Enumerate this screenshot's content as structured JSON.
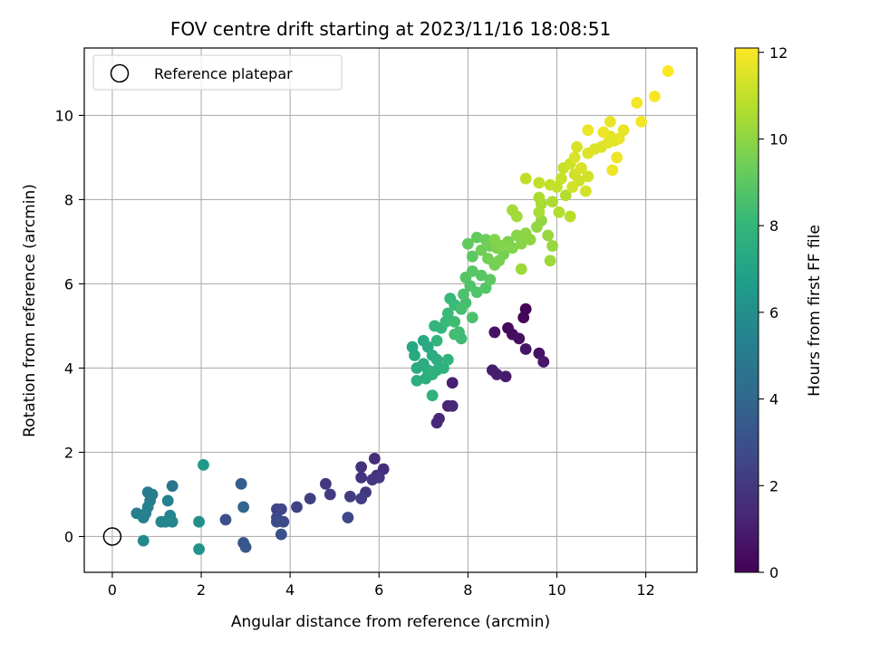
{
  "chart_data": {
    "type": "scatter",
    "title": "FOV centre drift starting at 2023/11/16 18:08:51",
    "xlabel": "Angular distance from reference (arcmin)",
    "ylabel": "Rotation from reference (arcmin)",
    "xlim": [
      -0.63,
      13.15
    ],
    "ylim": [
      -0.85,
      11.6
    ],
    "x_ticks": [
      0,
      2,
      4,
      6,
      8,
      10,
      12
    ],
    "y_ticks": [
      0,
      2,
      4,
      6,
      8,
      10
    ],
    "grid": true,
    "legend": {
      "position": "top-left",
      "entries": [
        "Reference platepar"
      ]
    },
    "reference_point": {
      "x": 0,
      "y": 0,
      "label": "Reference platepar"
    },
    "colorbar": {
      "label": "Hours from first FF file",
      "min": 0,
      "max": 12.1,
      "ticks": [
        0,
        2,
        4,
        6,
        8,
        10,
        12
      ],
      "colormap": "viridis"
    },
    "points": [
      {
        "x": 9.3,
        "y": 5.4,
        "c": 0.1
      },
      {
        "x": 9.25,
        "y": 5.2,
        "c": 0.2
      },
      {
        "x": 8.9,
        "y": 4.95,
        "c": 0.3
      },
      {
        "x": 9.0,
        "y": 4.8,
        "c": 0.4
      },
      {
        "x": 9.15,
        "y": 4.7,
        "c": 0.5
      },
      {
        "x": 8.6,
        "y": 4.85,
        "c": 0.6
      },
      {
        "x": 9.3,
        "y": 4.45,
        "c": 0.7
      },
      {
        "x": 9.6,
        "y": 4.35,
        "c": 0.6
      },
      {
        "x": 9.7,
        "y": 4.15,
        "c": 0.8
      },
      {
        "x": 8.85,
        "y": 3.8,
        "c": 0.9
      },
      {
        "x": 8.55,
        "y": 3.95,
        "c": 1.0
      },
      {
        "x": 8.65,
        "y": 3.85,
        "c": 1.0
      },
      {
        "x": 7.65,
        "y": 3.65,
        "c": 1.1
      },
      {
        "x": 7.55,
        "y": 3.1,
        "c": 1.2
      },
      {
        "x": 7.65,
        "y": 3.1,
        "c": 1.3
      },
      {
        "x": 7.35,
        "y": 2.8,
        "c": 1.3
      },
      {
        "x": 7.3,
        "y": 2.7,
        "c": 1.4
      },
      {
        "x": 5.9,
        "y": 1.85,
        "c": 1.5
      },
      {
        "x": 6.1,
        "y": 1.6,
        "c": 1.6
      },
      {
        "x": 5.6,
        "y": 1.65,
        "c": 1.7
      },
      {
        "x": 5.95,
        "y": 1.45,
        "c": 1.8
      },
      {
        "x": 5.6,
        "y": 1.4,
        "c": 1.8
      },
      {
        "x": 6.0,
        "y": 1.4,
        "c": 1.9
      },
      {
        "x": 5.85,
        "y": 1.35,
        "c": 1.9
      },
      {
        "x": 4.8,
        "y": 1.25,
        "c": 2.0
      },
      {
        "x": 5.7,
        "y": 1.05,
        "c": 2.0
      },
      {
        "x": 4.9,
        "y": 1.0,
        "c": 2.1
      },
      {
        "x": 5.35,
        "y": 0.95,
        "c": 2.2
      },
      {
        "x": 5.6,
        "y": 0.9,
        "c": 2.2
      },
      {
        "x": 4.45,
        "y": 0.9,
        "c": 2.3
      },
      {
        "x": 4.15,
        "y": 0.7,
        "c": 2.4
      },
      {
        "x": 3.7,
        "y": 0.65,
        "c": 2.5
      },
      {
        "x": 3.8,
        "y": 0.65,
        "c": 2.6
      },
      {
        "x": 5.3,
        "y": 0.45,
        "c": 2.6
      },
      {
        "x": 3.7,
        "y": 0.45,
        "c": 2.7
      },
      {
        "x": 3.7,
        "y": 0.35,
        "c": 2.8
      },
      {
        "x": 3.85,
        "y": 0.35,
        "c": 2.8
      },
      {
        "x": 2.55,
        "y": 0.4,
        "c": 3.0
      },
      {
        "x": 3.8,
        "y": 0.05,
        "c": 3.0
      },
      {
        "x": 2.95,
        "y": -0.15,
        "c": 3.2
      },
      {
        "x": 3.0,
        "y": -0.25,
        "c": 3.3
      },
      {
        "x": 2.9,
        "y": 1.25,
        "c": 3.6
      },
      {
        "x": 2.95,
        "y": 0.7,
        "c": 4.0
      },
      {
        "x": 1.35,
        "y": 1.2,
        "c": 4.6
      },
      {
        "x": 0.8,
        "y": 1.05,
        "c": 5.0
      },
      {
        "x": 0.9,
        "y": 1.0,
        "c": 5.0
      },
      {
        "x": 0.85,
        "y": 0.85,
        "c": 5.1
      },
      {
        "x": 0.8,
        "y": 0.7,
        "c": 5.2
      },
      {
        "x": 0.55,
        "y": 0.55,
        "c": 5.2
      },
      {
        "x": 0.75,
        "y": 0.55,
        "c": 5.3
      },
      {
        "x": 0.7,
        "y": 0.45,
        "c": 5.3
      },
      {
        "x": 1.25,
        "y": 0.85,
        "c": 5.4
      },
      {
        "x": 1.3,
        "y": 0.5,
        "c": 5.5
      },
      {
        "x": 1.1,
        "y": 0.35,
        "c": 5.5
      },
      {
        "x": 1.2,
        "y": 0.35,
        "c": 5.6
      },
      {
        "x": 1.35,
        "y": 0.35,
        "c": 5.6
      },
      {
        "x": 0.7,
        "y": -0.1,
        "c": 5.7
      },
      {
        "x": 1.95,
        "y": 0.35,
        "c": 6.0
      },
      {
        "x": 1.95,
        "y": -0.3,
        "c": 6.2
      },
      {
        "x": 2.05,
        "y": 1.7,
        "c": 6.5
      },
      {
        "x": 6.75,
        "y": 4.5,
        "c": 7.2
      },
      {
        "x": 6.8,
        "y": 4.3,
        "c": 7.3
      },
      {
        "x": 7.0,
        "y": 4.65,
        "c": 7.3
      },
      {
        "x": 7.1,
        "y": 4.5,
        "c": 7.4
      },
      {
        "x": 6.85,
        "y": 4.0,
        "c": 7.4
      },
      {
        "x": 7.0,
        "y": 4.1,
        "c": 7.5
      },
      {
        "x": 7.2,
        "y": 4.3,
        "c": 7.5
      },
      {
        "x": 7.3,
        "y": 4.2,
        "c": 7.5
      },
      {
        "x": 7.1,
        "y": 3.95,
        "c": 7.6
      },
      {
        "x": 6.85,
        "y": 3.7,
        "c": 7.6
      },
      {
        "x": 7.05,
        "y": 3.75,
        "c": 7.6
      },
      {
        "x": 7.2,
        "y": 3.85,
        "c": 7.7
      },
      {
        "x": 7.3,
        "y": 3.95,
        "c": 7.7
      },
      {
        "x": 7.45,
        "y": 4.0,
        "c": 7.7
      },
      {
        "x": 7.55,
        "y": 4.2,
        "c": 7.8
      },
      {
        "x": 7.2,
        "y": 3.35,
        "c": 7.8
      },
      {
        "x": 7.3,
        "y": 4.65,
        "c": 7.9
      },
      {
        "x": 7.25,
        "y": 5.0,
        "c": 8.0
      },
      {
        "x": 7.4,
        "y": 4.95,
        "c": 8.0
      },
      {
        "x": 7.5,
        "y": 5.1,
        "c": 8.1
      },
      {
        "x": 7.6,
        "y": 5.65,
        "c": 8.1
      },
      {
        "x": 7.7,
        "y": 5.5,
        "c": 8.2
      },
      {
        "x": 7.55,
        "y": 5.3,
        "c": 8.2
      },
      {
        "x": 7.7,
        "y": 5.1,
        "c": 8.3
      },
      {
        "x": 7.8,
        "y": 4.85,
        "c": 8.3
      },
      {
        "x": 7.85,
        "y": 4.7,
        "c": 8.3
      },
      {
        "x": 7.7,
        "y": 4.8,
        "c": 8.4
      },
      {
        "x": 7.95,
        "y": 5.55,
        "c": 8.5
      },
      {
        "x": 7.85,
        "y": 5.4,
        "c": 8.5
      },
      {
        "x": 8.1,
        "y": 5.2,
        "c": 8.6
      },
      {
        "x": 7.9,
        "y": 5.75,
        "c": 8.6
      },
      {
        "x": 8.05,
        "y": 5.95,
        "c": 8.7
      },
      {
        "x": 8.2,
        "y": 5.8,
        "c": 8.7
      },
      {
        "x": 8.4,
        "y": 5.9,
        "c": 8.8
      },
      {
        "x": 7.95,
        "y": 6.15,
        "c": 8.8
      },
      {
        "x": 8.1,
        "y": 6.3,
        "c": 8.9
      },
      {
        "x": 8.3,
        "y": 6.2,
        "c": 8.9
      },
      {
        "x": 8.5,
        "y": 6.1,
        "c": 9.0
      },
      {
        "x": 8.1,
        "y": 6.65,
        "c": 9.0
      },
      {
        "x": 8.0,
        "y": 6.95,
        "c": 9.1
      },
      {
        "x": 8.2,
        "y": 7.1,
        "c": 9.2
      },
      {
        "x": 8.4,
        "y": 7.05,
        "c": 9.3
      },
      {
        "x": 8.5,
        "y": 6.9,
        "c": 9.4
      },
      {
        "x": 8.3,
        "y": 6.8,
        "c": 9.4
      },
      {
        "x": 8.45,
        "y": 6.6,
        "c": 9.5
      },
      {
        "x": 8.6,
        "y": 6.45,
        "c": 9.5
      },
      {
        "x": 8.7,
        "y": 6.55,
        "c": 9.6
      },
      {
        "x": 8.8,
        "y": 6.7,
        "c": 9.6
      },
      {
        "x": 8.65,
        "y": 6.85,
        "c": 9.7
      },
      {
        "x": 8.9,
        "y": 7.0,
        "c": 9.7
      },
      {
        "x": 9.0,
        "y": 6.85,
        "c": 9.8
      },
      {
        "x": 8.6,
        "y": 7.05,
        "c": 9.8
      },
      {
        "x": 8.75,
        "y": 6.9,
        "c": 9.8
      },
      {
        "x": 9.1,
        "y": 7.15,
        "c": 9.9
      },
      {
        "x": 9.2,
        "y": 6.95,
        "c": 9.9
      },
      {
        "x": 9.3,
        "y": 7.2,
        "c": 10.0
      },
      {
        "x": 9.4,
        "y": 7.05,
        "c": 10.0
      },
      {
        "x": 9.55,
        "y": 7.35,
        "c": 10.1
      },
      {
        "x": 9.65,
        "y": 7.5,
        "c": 10.1
      },
      {
        "x": 9.8,
        "y": 7.15,
        "c": 10.2
      },
      {
        "x": 9.9,
        "y": 6.9,
        "c": 10.2
      },
      {
        "x": 9.2,
        "y": 6.35,
        "c": 10.3
      },
      {
        "x": 9.85,
        "y": 6.55,
        "c": 10.3
      },
      {
        "x": 9.0,
        "y": 7.75,
        "c": 10.4
      },
      {
        "x": 9.1,
        "y": 7.6,
        "c": 10.4
      },
      {
        "x": 9.6,
        "y": 7.7,
        "c": 10.5
      },
      {
        "x": 9.65,
        "y": 7.9,
        "c": 10.5
      },
      {
        "x": 9.6,
        "y": 8.05,
        "c": 10.6
      },
      {
        "x": 9.9,
        "y": 7.95,
        "c": 10.6
      },
      {
        "x": 10.05,
        "y": 7.7,
        "c": 10.7
      },
      {
        "x": 10.2,
        "y": 8.1,
        "c": 10.7
      },
      {
        "x": 10.3,
        "y": 7.6,
        "c": 10.8
      },
      {
        "x": 9.3,
        "y": 8.5,
        "c": 10.9
      },
      {
        "x": 9.6,
        "y": 8.4,
        "c": 11.0
      },
      {
        "x": 9.85,
        "y": 8.35,
        "c": 11.0
      },
      {
        "x": 10.0,
        "y": 8.3,
        "c": 11.0
      },
      {
        "x": 10.1,
        "y": 8.5,
        "c": 11.1
      },
      {
        "x": 10.15,
        "y": 8.75,
        "c": 11.1
      },
      {
        "x": 10.3,
        "y": 8.85,
        "c": 11.2
      },
      {
        "x": 10.4,
        "y": 8.6,
        "c": 11.2
      },
      {
        "x": 10.5,
        "y": 8.45,
        "c": 11.2
      },
      {
        "x": 10.35,
        "y": 8.3,
        "c": 11.3
      },
      {
        "x": 10.65,
        "y": 8.2,
        "c": 11.3
      },
      {
        "x": 10.7,
        "y": 8.55,
        "c": 11.3
      },
      {
        "x": 10.55,
        "y": 8.75,
        "c": 11.4
      },
      {
        "x": 10.4,
        "y": 9.0,
        "c": 11.4
      },
      {
        "x": 10.45,
        "y": 9.25,
        "c": 11.4
      },
      {
        "x": 10.7,
        "y": 9.1,
        "c": 11.5
      },
      {
        "x": 10.85,
        "y": 9.2,
        "c": 11.5
      },
      {
        "x": 11.0,
        "y": 9.25,
        "c": 11.5
      },
      {
        "x": 11.15,
        "y": 9.35,
        "c": 11.6
      },
      {
        "x": 11.3,
        "y": 9.4,
        "c": 11.6
      },
      {
        "x": 11.2,
        "y": 9.5,
        "c": 11.6
      },
      {
        "x": 11.4,
        "y": 9.45,
        "c": 11.7
      },
      {
        "x": 11.5,
        "y": 9.65,
        "c": 11.7
      },
      {
        "x": 11.2,
        "y": 9.85,
        "c": 11.7
      },
      {
        "x": 11.35,
        "y": 9.0,
        "c": 11.8
      },
      {
        "x": 11.25,
        "y": 8.7,
        "c": 11.8
      },
      {
        "x": 10.7,
        "y": 9.65,
        "c": 11.8
      },
      {
        "x": 11.05,
        "y": 9.6,
        "c": 11.8
      },
      {
        "x": 11.8,
        "y": 10.3,
        "c": 11.9
      },
      {
        "x": 11.9,
        "y": 9.85,
        "c": 11.9
      },
      {
        "x": 12.2,
        "y": 10.45,
        "c": 12.0
      },
      {
        "x": 12.5,
        "y": 11.05,
        "c": 12.1
      }
    ]
  }
}
